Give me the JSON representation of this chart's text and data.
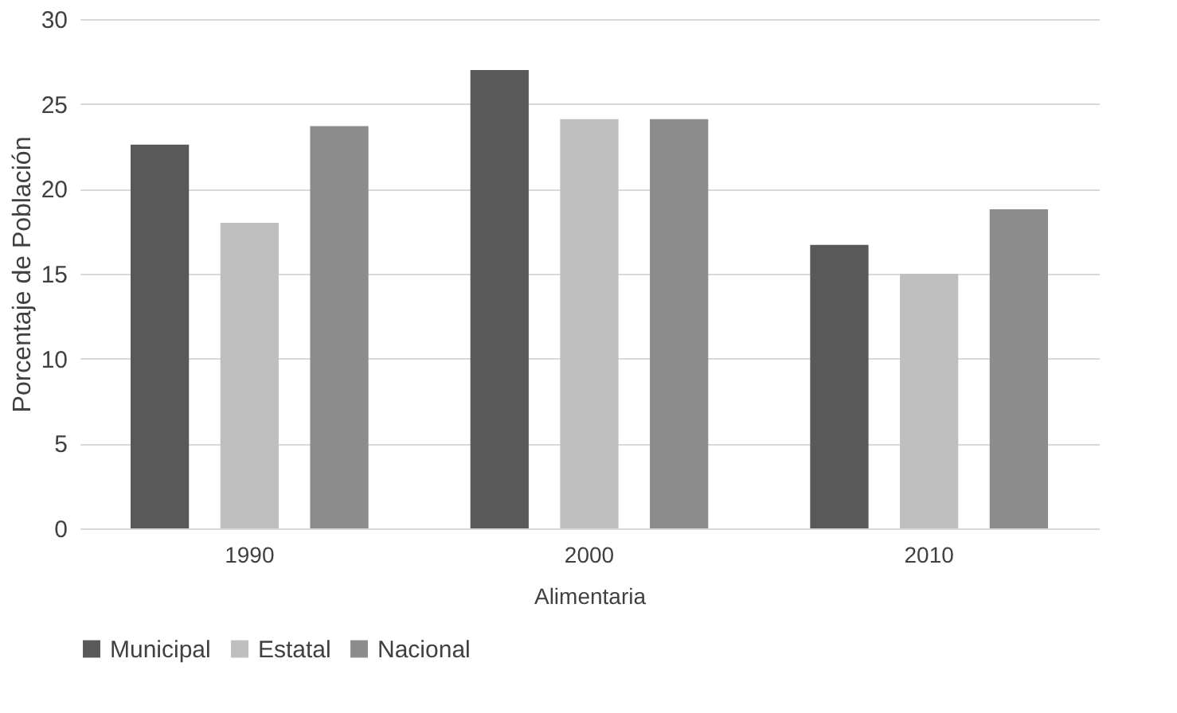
{
  "chart_data": {
    "type": "bar",
    "xlabel": "Alimentaria",
    "ylabel": "Porcentaje de Población",
    "categories": [
      "1990",
      "2000",
      "2010"
    ],
    "series": [
      {
        "name": "Municipal",
        "color": "#595959",
        "values": [
          22.6,
          27.0,
          16.7
        ]
      },
      {
        "name": "Estatal",
        "color": "#bfbfbf",
        "values": [
          18.0,
          24.1,
          15.0
        ]
      },
      {
        "name": "Nacional",
        "color": "#8c8c8c",
        "values": [
          23.7,
          24.1,
          18.8
        ]
      }
    ],
    "ylim": [
      0,
      30
    ],
    "yticks": [
      0,
      5,
      10,
      15,
      20,
      25,
      30
    ],
    "grid": "y",
    "legend": "bottom"
  }
}
